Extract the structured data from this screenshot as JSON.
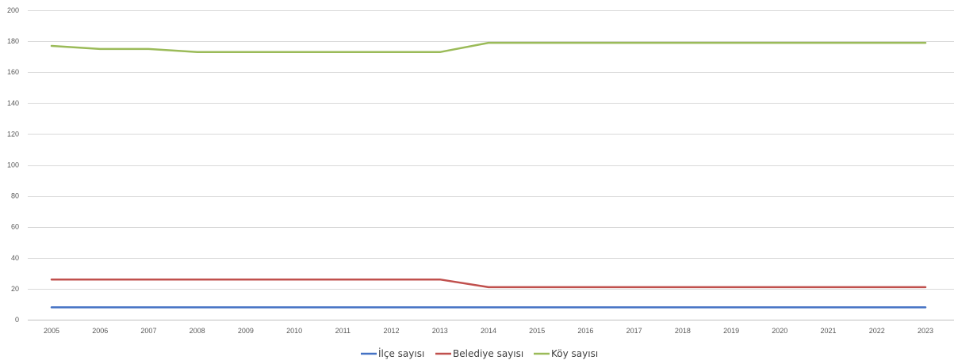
{
  "chart_data": {
    "type": "line",
    "title": "",
    "xlabel": "",
    "ylabel": "",
    "categories": [
      "2005",
      "2006",
      "2007",
      "2008",
      "2009",
      "2010",
      "2011",
      "2012",
      "2013",
      "2014",
      "2015",
      "2016",
      "2017",
      "2018",
      "2019",
      "2020",
      "2021",
      "2022",
      "2023"
    ],
    "ylim": [
      0,
      200
    ],
    "yticks": [
      0,
      20,
      40,
      60,
      80,
      100,
      120,
      140,
      160,
      180,
      200
    ],
    "grid": true,
    "legend_position": "bottom",
    "series": [
      {
        "name": "İlçe sayısı",
        "color": "#4472c4",
        "values": [
          8,
          8,
          8,
          8,
          8,
          8,
          8,
          8,
          8,
          8,
          8,
          8,
          8,
          8,
          8,
          8,
          8,
          8,
          8
        ]
      },
      {
        "name": "Belediye sayısı",
        "color": "#c0504d",
        "values": [
          26,
          26,
          26,
          26,
          26,
          26,
          26,
          26,
          26,
          21,
          21,
          21,
          21,
          21,
          21,
          21,
          21,
          21,
          21
        ]
      },
      {
        "name": "Köy sayısı",
        "color": "#9bbb59",
        "values": [
          177,
          175,
          175,
          173,
          173,
          173,
          173,
          173,
          173,
          179,
          179,
          179,
          179,
          179,
          179,
          179,
          179,
          179,
          179
        ]
      }
    ]
  }
}
